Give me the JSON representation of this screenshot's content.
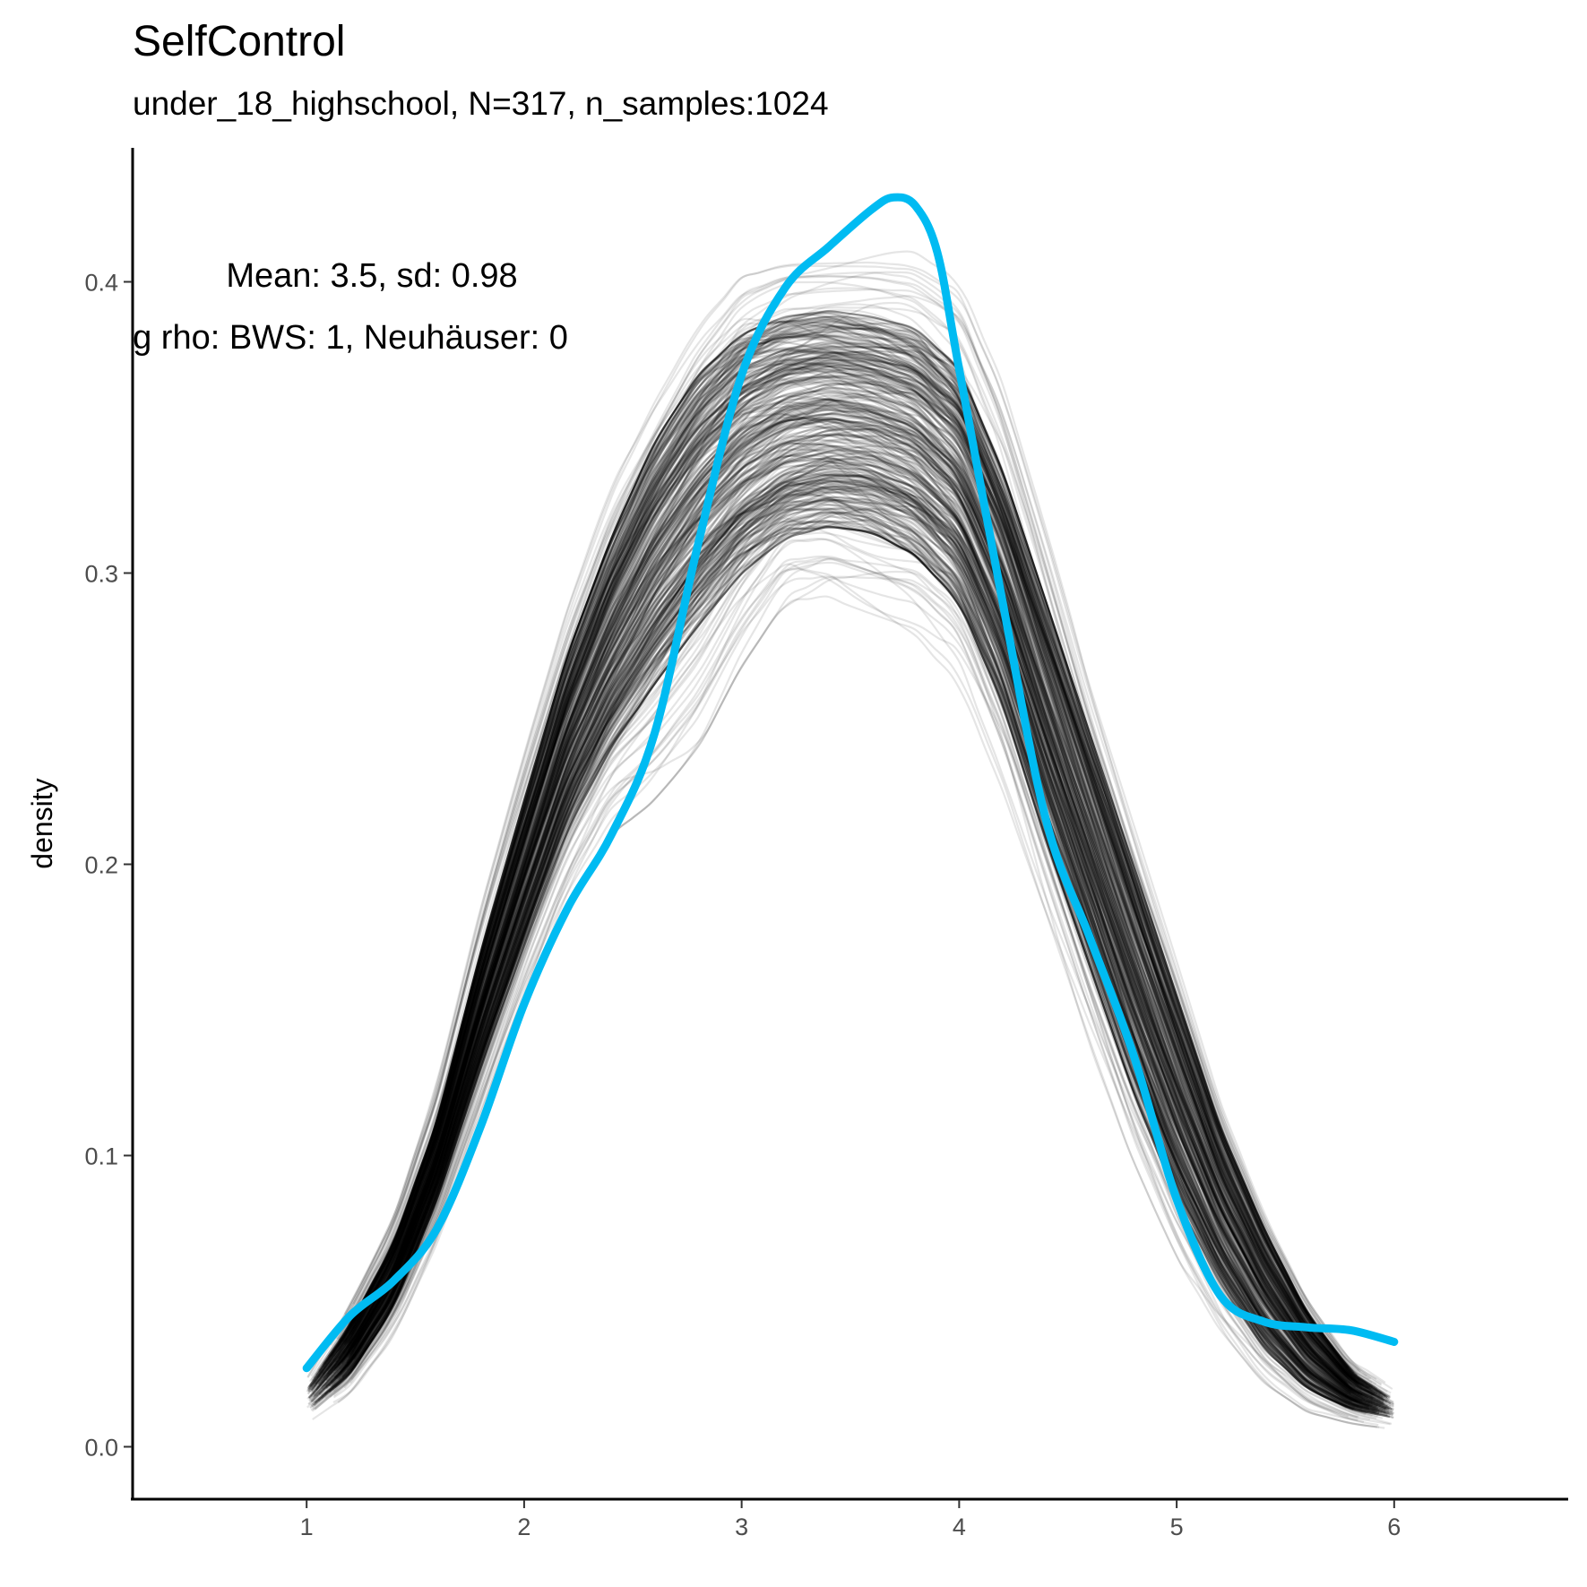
{
  "chart_data": {
    "type": "line",
    "title": "SelfControl",
    "subtitle": "under_18_highschool, N=317, n_samples:1024",
    "xlabel": "",
    "ylabel": "density",
    "xlim": [
      0.2,
      6.8
    ],
    "ylim": [
      -0.018,
      0.446
    ],
    "x_ticks": [
      "1",
      "2",
      "3",
      "4",
      "5",
      "6"
    ],
    "y_ticks": [
      "0.0",
      "0.1",
      "0.2",
      "0.3",
      "0.4"
    ],
    "grid": false,
    "legend": "none",
    "annotations": [
      "Mean: 3.5, sd: 0.98",
      "g rho: BWS: 1, Neuhäuser: 0"
    ],
    "series": [
      {
        "color": "#00bbf2",
        "x": [
          1.0,
          1.2,
          1.4,
          1.6,
          1.8,
          2.0,
          2.2,
          2.4,
          2.6,
          2.8,
          3.0,
          3.2,
          3.4,
          3.6,
          3.7,
          3.8,
          3.9,
          4.0,
          4.2,
          4.4,
          4.6,
          4.8,
          5.0,
          5.2,
          5.4,
          5.6,
          5.8,
          6.0
        ],
        "values": [
          0.027,
          0.045,
          0.057,
          0.075,
          0.11,
          0.152,
          0.185,
          0.21,
          0.245,
          0.31,
          0.368,
          0.398,
          0.412,
          0.425,
          0.429,
          0.426,
          0.41,
          0.37,
          0.29,
          0.215,
          0.175,
          0.135,
          0.085,
          0.052,
          0.043,
          0.041,
          0.04,
          0.036
        ]
      }
    ],
    "bootstrap_band": {
      "color": "#000000",
      "x": [
        1.0,
        1.2,
        1.4,
        1.6,
        1.8,
        2.0,
        2.2,
        2.4,
        2.6,
        2.8,
        3.0,
        3.2,
        3.4,
        3.6,
        3.8,
        4.0,
        4.2,
        4.4,
        4.6,
        4.8,
        5.0,
        5.2,
        5.4,
        5.6,
        5.8,
        6.0
      ],
      "upper": [
        0.024,
        0.05,
        0.08,
        0.125,
        0.185,
        0.238,
        0.288,
        0.33,
        0.362,
        0.39,
        0.408,
        0.412,
        0.412,
        0.412,
        0.41,
        0.4,
        0.365,
        0.315,
        0.262,
        0.215,
        0.168,
        0.12,
        0.082,
        0.052,
        0.03,
        0.02
      ],
      "lower": [
        0.008,
        0.018,
        0.038,
        0.07,
        0.11,
        0.15,
        0.185,
        0.21,
        0.222,
        0.24,
        0.268,
        0.29,
        0.292,
        0.285,
        0.278,
        0.262,
        0.225,
        0.18,
        0.138,
        0.098,
        0.065,
        0.04,
        0.022,
        0.012,
        0.008,
        0.006
      ],
      "core_upper": [
        0.02,
        0.042,
        0.07,
        0.112,
        0.17,
        0.222,
        0.272,
        0.312,
        0.345,
        0.368,
        0.382,
        0.388,
        0.39,
        0.388,
        0.384,
        0.37,
        0.335,
        0.29,
        0.245,
        0.2,
        0.155,
        0.11,
        0.075,
        0.046,
        0.026,
        0.016
      ],
      "core_lower": [
        0.012,
        0.025,
        0.048,
        0.085,
        0.13,
        0.172,
        0.212,
        0.24,
        0.262,
        0.282,
        0.3,
        0.312,
        0.316,
        0.314,
        0.306,
        0.29,
        0.255,
        0.208,
        0.165,
        0.122,
        0.085,
        0.056,
        0.034,
        0.02,
        0.013,
        0.01
      ]
    }
  }
}
